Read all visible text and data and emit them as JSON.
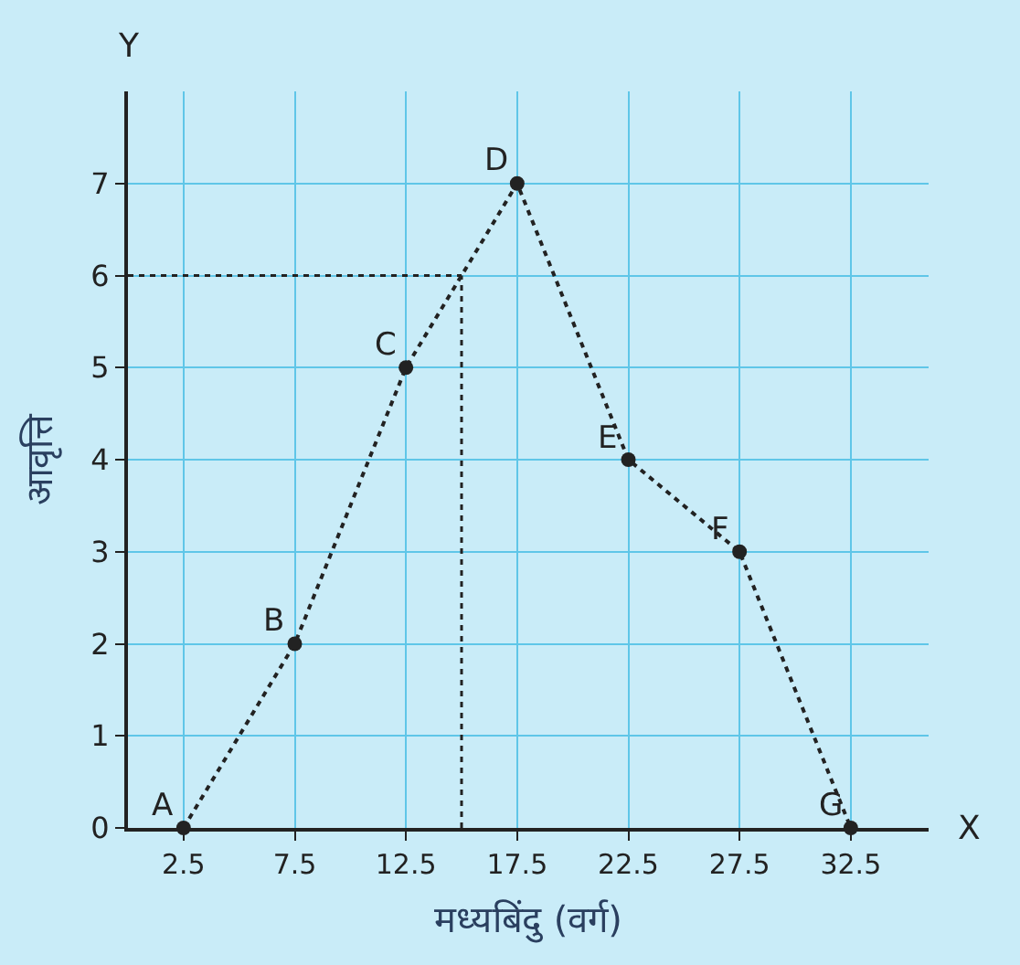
{
  "chart_data": {
    "type": "line",
    "xlabel": "मध्यबिंदु (वर्ग)",
    "ylabel": "आवृत्ति",
    "x": [
      2.5,
      7.5,
      12.5,
      17.5,
      22.5,
      27.5,
      32.5
    ],
    "series": [
      {
        "color": "#222222",
        "values": [
          0,
          2,
          5,
          7,
          4,
          3,
          0
        ]
      }
    ],
    "xlim": [
      0,
      36
    ],
    "xticks": [
      2.5,
      7.5,
      12.5,
      17.5,
      22.5,
      27.5,
      32.5
    ],
    "ylim": [
      0,
      8
    ],
    "yticks": [
      0,
      1,
      2,
      3,
      4,
      5,
      6,
      7
    ],
    "ref_lines": [
      {
        "axis": "y",
        "value": 6,
        "label": null,
        "line_style": "dotted",
        "color": "#222222"
      },
      {
        "axis": "x",
        "value": 15,
        "label": null,
        "line_style": "dotted",
        "color": "#222222"
      }
    ],
    "annotations": [
      {
        "text": "A",
        "x": 2.5,
        "y": 0
      },
      {
        "text": "B",
        "x": 7.5,
        "y": 2
      },
      {
        "text": "C",
        "x": 12.5,
        "y": 5
      },
      {
        "text": "D",
        "x": 17.5,
        "y": 7
      },
      {
        "text": "E",
        "x": 22.5,
        "y": 4
      },
      {
        "text": "F",
        "x": 27.5,
        "y": 3
      },
      {
        "text": "G",
        "x": 32.5,
        "y": 0
      },
      "X",
      "Y"
    ],
    "grid": true,
    "marker": "circle",
    "line_style": "dotted"
  }
}
